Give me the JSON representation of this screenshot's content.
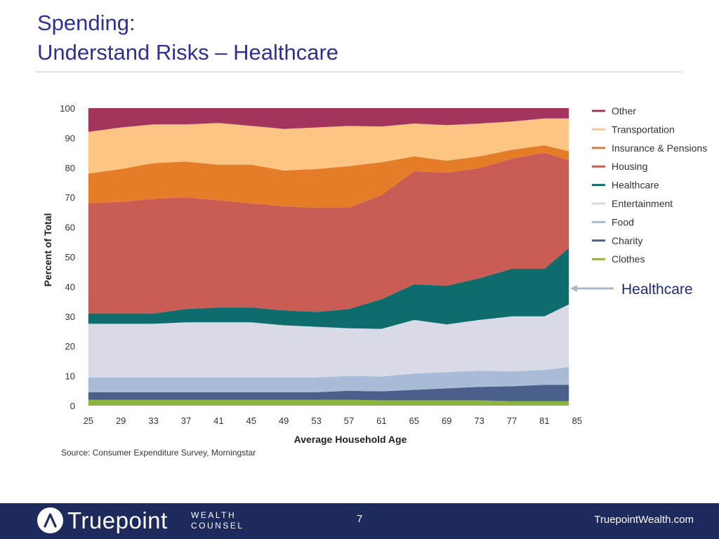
{
  "title": {
    "line1": "Spending:",
    "line2": "Understand Risks – Healthcare"
  },
  "callout": {
    "label": "Healthcare"
  },
  "source": "Source: Consumer Expenditure Survey, Morningstar",
  "footer": {
    "brand_name": "Truepoint",
    "brand_sub_line1": "WEALTH",
    "brand_sub_line2": "COUNSEL",
    "page_number": "7",
    "website": "TruepointWealth.com",
    "background_color": "#1f2a5c"
  },
  "chart_data": {
    "type": "area",
    "stacked": true,
    "xlabel": "Average Household Age",
    "ylabel": "Percent of Total",
    "ylim": [
      0,
      100
    ],
    "yticks": [
      0,
      10,
      20,
      30,
      40,
      50,
      60,
      70,
      80,
      90,
      100
    ],
    "xlim": [
      24.5,
      84.5
    ],
    "xticks": [
      25,
      29,
      33,
      37,
      41,
      45,
      49,
      53,
      57,
      61,
      65,
      69,
      73,
      77,
      81,
      85
    ],
    "legend_position": "right",
    "x": [
      25,
      29,
      33,
      37,
      41,
      45,
      49,
      53,
      57,
      61,
      65,
      69,
      73,
      77,
      81,
      84
    ],
    "series": [
      {
        "name": "Clothes",
        "color": "#8db43e",
        "values": [
          2.0,
          2.0,
          2.0,
          2.0,
          2.0,
          2.0,
          2.0,
          2.0,
          2.0,
          1.8,
          1.8,
          1.8,
          1.8,
          1.5,
          1.5,
          1.5
        ]
      },
      {
        "name": "Charity",
        "color": "#4a5f8a",
        "values": [
          2.5,
          2.5,
          2.5,
          2.5,
          2.5,
          2.5,
          2.5,
          2.5,
          3.0,
          3.0,
          3.5,
          4.0,
          4.5,
          5.0,
          5.5,
          5.5
        ]
      },
      {
        "name": "Food",
        "color": "#a8bcd8",
        "values": [
          5.0,
          5.0,
          5.0,
          5.0,
          5.0,
          5.0,
          5.0,
          5.0,
          5.0,
          5.0,
          5.5,
          5.5,
          5.5,
          5.0,
          5.0,
          6.0
        ]
      },
      {
        "name": "Entertainment",
        "color": "#d9dae7",
        "values": [
          18.0,
          18.0,
          18.0,
          18.5,
          18.5,
          18.5,
          17.5,
          17.0,
          16.0,
          16.0,
          18.0,
          16.0,
          17.0,
          18.5,
          18.0,
          21.0
        ]
      },
      {
        "name": "Healthcare",
        "color": "#0f6c6c",
        "values": [
          3.5,
          3.5,
          3.5,
          4.5,
          5.0,
          5.0,
          5.0,
          5.0,
          6.5,
          10.0,
          12.0,
          13.0,
          14.0,
          16.0,
          16.0,
          19.0
        ]
      },
      {
        "name": "Housing",
        "color": "#c95d56",
        "values": [
          37.0,
          37.5,
          38.5,
          37.5,
          36.0,
          35.0,
          35.0,
          35.0,
          34.0,
          35.0,
          38.0,
          38.0,
          37.0,
          37.0,
          39.0,
          29.5
        ]
      },
      {
        "name": "Insurance & Pensions",
        "color": "#e57c27",
        "values": [
          10.0,
          11.0,
          12.0,
          12.0,
          12.0,
          13.0,
          12.0,
          13.0,
          14.0,
          11.0,
          5.0,
          4.0,
          4.0,
          3.0,
          2.5,
          3.0
        ]
      },
      {
        "name": "Transportation",
        "color": "#fcc583",
        "values": [
          14.0,
          14.0,
          13.0,
          12.5,
          14.0,
          13.0,
          14.0,
          14.0,
          13.5,
          12.0,
          11.0,
          12.0,
          11.0,
          9.5,
          9.0,
          11.0
        ]
      },
      {
        "name": "Other",
        "color": "#a3345d",
        "values": [
          8.0,
          6.5,
          5.5,
          5.5,
          5.0,
          6.0,
          7.0,
          6.5,
          6.0,
          6.2,
          5.2,
          5.7,
          5.2,
          4.5,
          3.5,
          3.5
        ]
      }
    ]
  }
}
